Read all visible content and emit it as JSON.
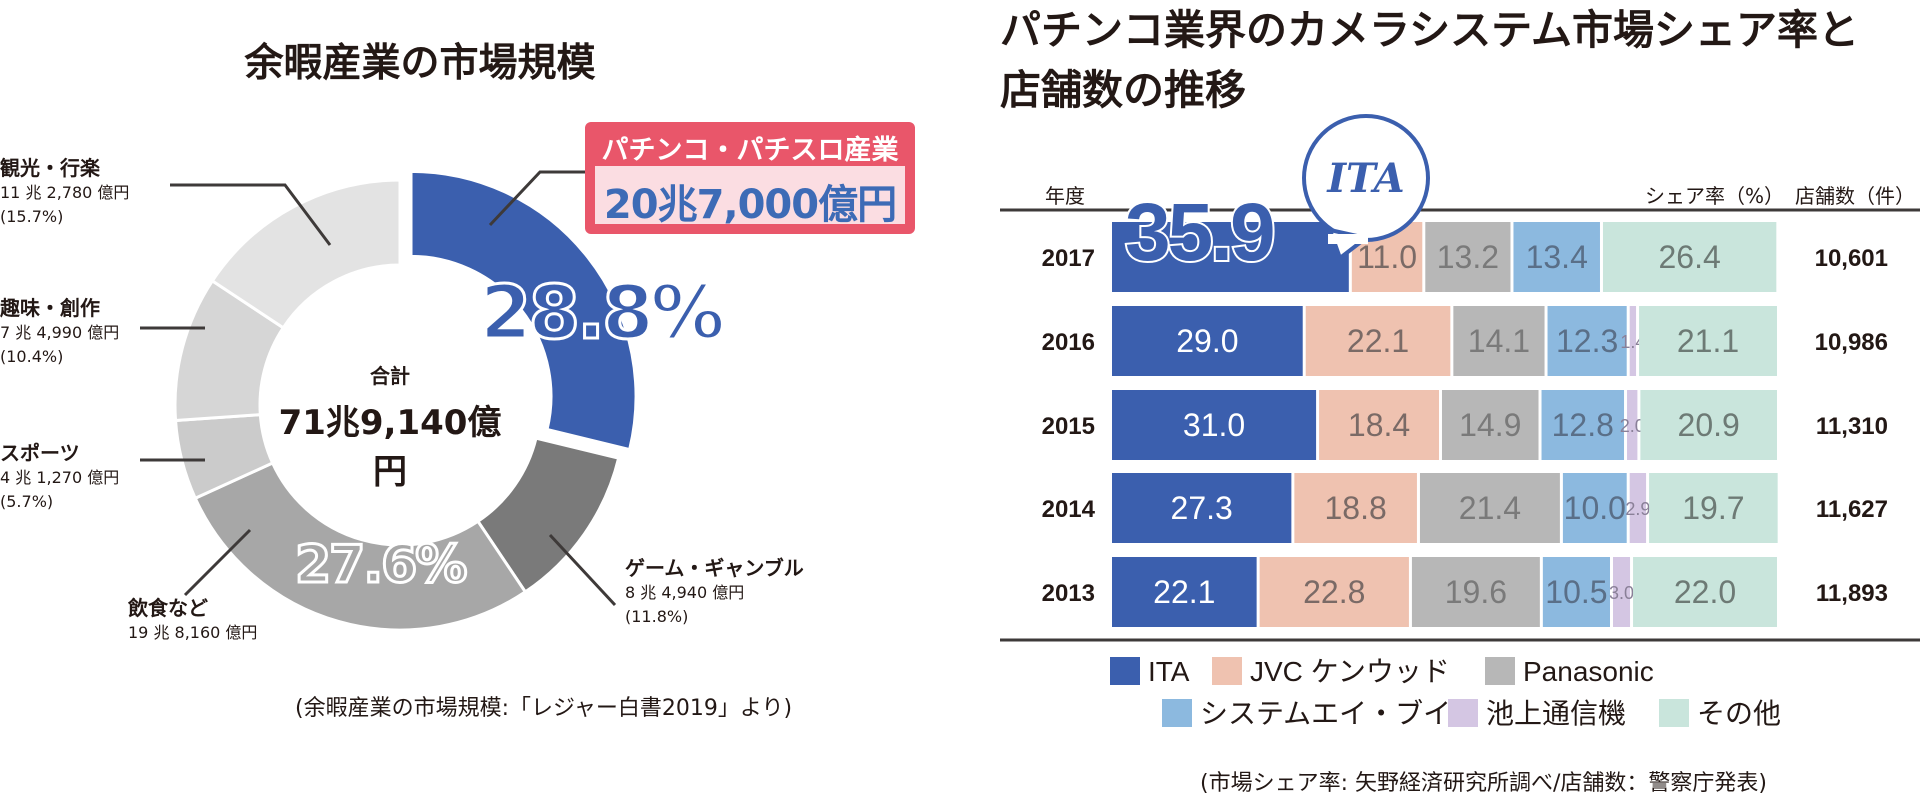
{
  "left_chart": {
    "title": "余暇産業の市場規模",
    "center_label": "合計",
    "center_value": "71兆9,140億円",
    "highlight_share": "28.8%",
    "second_share": "27.6%",
    "callout_title": "パチンコ・パチスロ産業",
    "callout_value": "20兆7,000億円",
    "source": "(余暇産業の市場規模:「レジャー白書2019」より)",
    "labels": [
      {
        "name": "観光・行楽",
        "amount": "11 兆 2,780 億円",
        "pct": "(15.7%)"
      },
      {
        "name": "趣味・創作",
        "amount": "7 兆 4,990 億円",
        "pct": "(10.4%)"
      },
      {
        "name": "スポーツ",
        "amount": "4 兆 1,270 億円",
        "pct": "(5.7%)"
      },
      {
        "name": "飲食など",
        "amount": "19 兆 8,160 億円",
        "pct": ""
      },
      {
        "name": "ゲーム・ギャンブル",
        "amount": "8 兆 4,940 億円",
        "pct": "(11.8%)"
      }
    ]
  },
  "right_chart": {
    "title_line1": "パチンコ業界のカメラシステム市場シェア率と",
    "title_line2": "店舗数の推移",
    "header_year": "年度",
    "header_share": "シェア率（%）",
    "header_stores": "店舗数（件）",
    "logo_text": "ITA",
    "source": "(市場シェア率: 矢野経済研究所調べ/店舗数：警察庁発表)"
  },
  "chart_data": [
    {
      "type": "pie",
      "title": "余暇産業の市場規模",
      "total": "71兆9,140億円",
      "slices": [
        {
          "label": "パチンコ・パチスロ産業",
          "value": 28.8,
          "amount": "20兆7,000億円",
          "color": "#3b5fae"
        },
        {
          "label": "ゲーム・ギャンブル",
          "value": 11.8,
          "amount": "8 兆 4,940 億円",
          "color": "#7a7a7a"
        },
        {
          "label": "飲食など",
          "value": 27.6,
          "amount": "19 兆 8,160 億円",
          "color": "#a7a7a7"
        },
        {
          "label": "スポーツ",
          "value": 5.7,
          "amount": "4 兆 1,270 億円",
          "color": "#cbcbcb"
        },
        {
          "label": "趣味・創作",
          "value": 10.4,
          "amount": "7 兆 4,990 億円",
          "color": "#d6d6d6"
        },
        {
          "label": "観光・行楽",
          "value": 15.7,
          "amount": "11 兆 2,780 億円",
          "color": "#e3e3e3"
        }
      ]
    },
    {
      "type": "bar",
      "stacked": true,
      "orientation": "horizontal",
      "title": "パチンコ業界のカメラシステム市場シェア率と店舗数の推移",
      "categories": [
        "2017",
        "2016",
        "2015",
        "2014",
        "2013"
      ],
      "series": [
        {
          "name": "ITA",
          "values": [
            35.9,
            29.0,
            31.0,
            27.3,
            22.1
          ],
          "color": "#3b5fae",
          "text": "#ffffff"
        },
        {
          "name": "JVC ケンウッド",
          "values": [
            11.0,
            22.1,
            18.4,
            18.8,
            22.8
          ],
          "color": "#efc2b0",
          "text": "#7a6a66"
        },
        {
          "name": "Panasonic",
          "values": [
            13.2,
            14.1,
            14.9,
            21.4,
            19.6
          ],
          "color": "#b7b7b7",
          "text": "#7a7a7a"
        },
        {
          "name": "システムエイ・ブイ",
          "values": [
            13.4,
            12.3,
            12.8,
            10.0,
            10.5
          ],
          "color": "#8cb9df",
          "text": "#5a6f88"
        },
        {
          "name": "池上通信機",
          "values": [
            0,
            1.4,
            2.0,
            2.9,
            3.0
          ],
          "color": "#d4c6e3",
          "text": "#8a8098"
        },
        {
          "name": "その他",
          "values": [
            26.4,
            21.1,
            20.9,
            19.7,
            22.0
          ],
          "color": "#c9e5dc",
          "text": "#6d7a75"
        }
      ],
      "value_labels": [
        [
          "35.9",
          "11.0",
          "13.2",
          "13.4",
          "",
          "26.4"
        ],
        [
          "29.0",
          "22.1",
          "14.1",
          "12.3",
          "1.4",
          "21.1"
        ],
        [
          "31.0",
          "18.4",
          "14.9",
          "12.8",
          "2.0",
          "20.9"
        ],
        [
          "27.3",
          "18.8",
          "21.4",
          "10.0",
          "2.9",
          "19.7"
        ],
        [
          "22.1",
          "22.8",
          "19.6",
          "10.5",
          "3.0",
          "22.0"
        ]
      ],
      "stores": [
        "10,601",
        "10,986",
        "11,310",
        "11,627",
        "11,893"
      ],
      "legend": {
        "row1": [
          "ITA",
          "JVC ケンウッド",
          "Panasonic"
        ],
        "row2": [
          "システムエイ・ブイ",
          "池上通信機",
          "その他"
        ]
      }
    }
  ]
}
